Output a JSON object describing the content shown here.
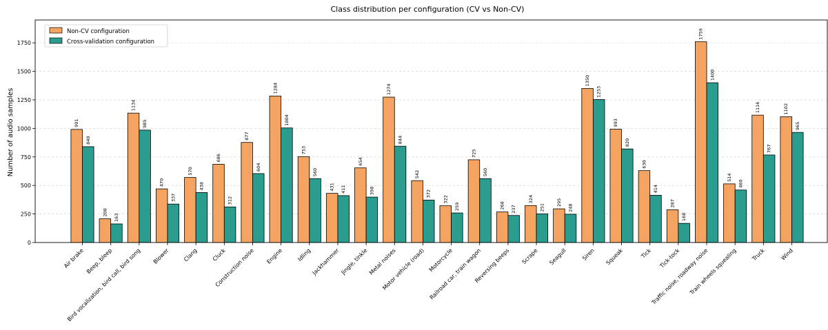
{
  "chart_data": {
    "type": "bar",
    "title": "Class distribution per configuration (CV vs Non-CV)",
    "xlabel": "",
    "ylabel": "Number of audio samples",
    "ylim": [
      0,
      1950
    ],
    "yticks": [
      0,
      250,
      500,
      750,
      1000,
      1250,
      1500,
      1750
    ],
    "grid": "horizontal-dashed",
    "legend_position": "top-left",
    "categories": [
      "Air brake",
      "Beep, bleep",
      "Bird vocalization, bird call, bird song",
      "Blower",
      "Clang",
      "Cluck",
      "Construction noise",
      "Engine",
      "Idling",
      "Jackhammer",
      "Jingle, tinkle",
      "Metal noises",
      "Motor vehicle (road)",
      "Motorcycle",
      "Railroad car, train wagon",
      "Reversing beeps",
      "Scrape",
      "Seagull",
      "Siren",
      "Squeak",
      "Tick",
      "Tick-tock",
      "Traffic noise, roadway noise",
      "Train wheels squealing",
      "Truck",
      "Wind"
    ],
    "series": [
      {
        "name": "Non-CV configuration",
        "color": "#f4a460",
        "values": [
          991,
          208,
          1134,
          470,
          570,
          686,
          877,
          1284,
          753,
          431,
          654,
          1274,
          542,
          322,
          725,
          268,
          324,
          295,
          1350,
          993,
          630,
          287,
          1759,
          514,
          1116,
          1102
        ]
      },
      {
        "name": "Cross-validation configuration",
        "color": "#2a9d8f",
        "values": [
          840,
          163,
          985,
          337,
          438,
          312,
          604,
          1004,
          560,
          411,
          398,
          844,
          372,
          259,
          560,
          237,
          251,
          248,
          1253,
          820,
          414,
          168,
          1400,
          460,
          767,
          965
        ]
      }
    ]
  }
}
